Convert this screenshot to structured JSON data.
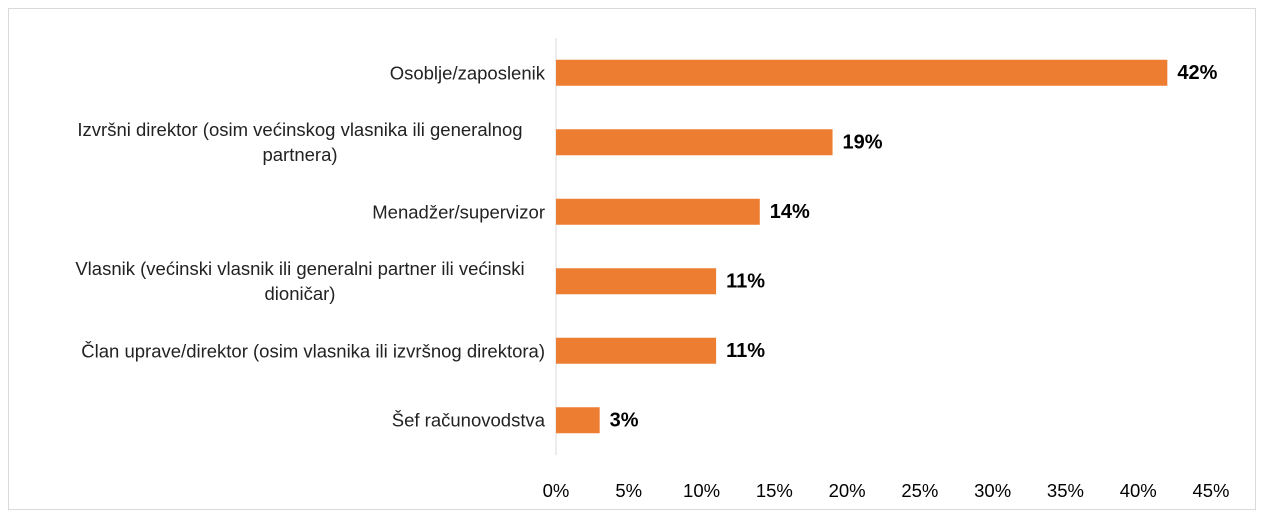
{
  "chart_data": {
    "type": "bar",
    "orientation": "horizontal",
    "categories": [
      "Osoblje/zaposlenik",
      "Izvršni direktor (osim većinskog vlasnika ili generalnog partnera)",
      "Menadžer/supervizor",
      "Vlasnik (većinski vlasnik ili generalni partner ili većinski dioničar)",
      "Član uprave/direktor (osim vlasnika ili izvršnog direktora)",
      "Šef računovodstva"
    ],
    "values": [
      42,
      19,
      14,
      11,
      11,
      3
    ],
    "value_labels": [
      "42%",
      "19%",
      "14%",
      "11%",
      "11%",
      "3%"
    ],
    "color": "#ed7d31",
    "xlim": [
      0,
      45
    ],
    "xticks": [
      {
        "value": 0,
        "label": "0%"
      },
      {
        "value": 5,
        "label": "5%"
      },
      {
        "value": 10,
        "label": "10%"
      },
      {
        "value": 15,
        "label": "15%"
      },
      {
        "value": 20,
        "label": "20%"
      },
      {
        "value": 25,
        "label": "25%"
      },
      {
        "value": 30,
        "label": "30%"
      },
      {
        "value": 35,
        "label": "35%"
      },
      {
        "value": 40,
        "label": "40%"
      },
      {
        "value": 45,
        "label": "45%"
      }
    ],
    "grid": false
  }
}
